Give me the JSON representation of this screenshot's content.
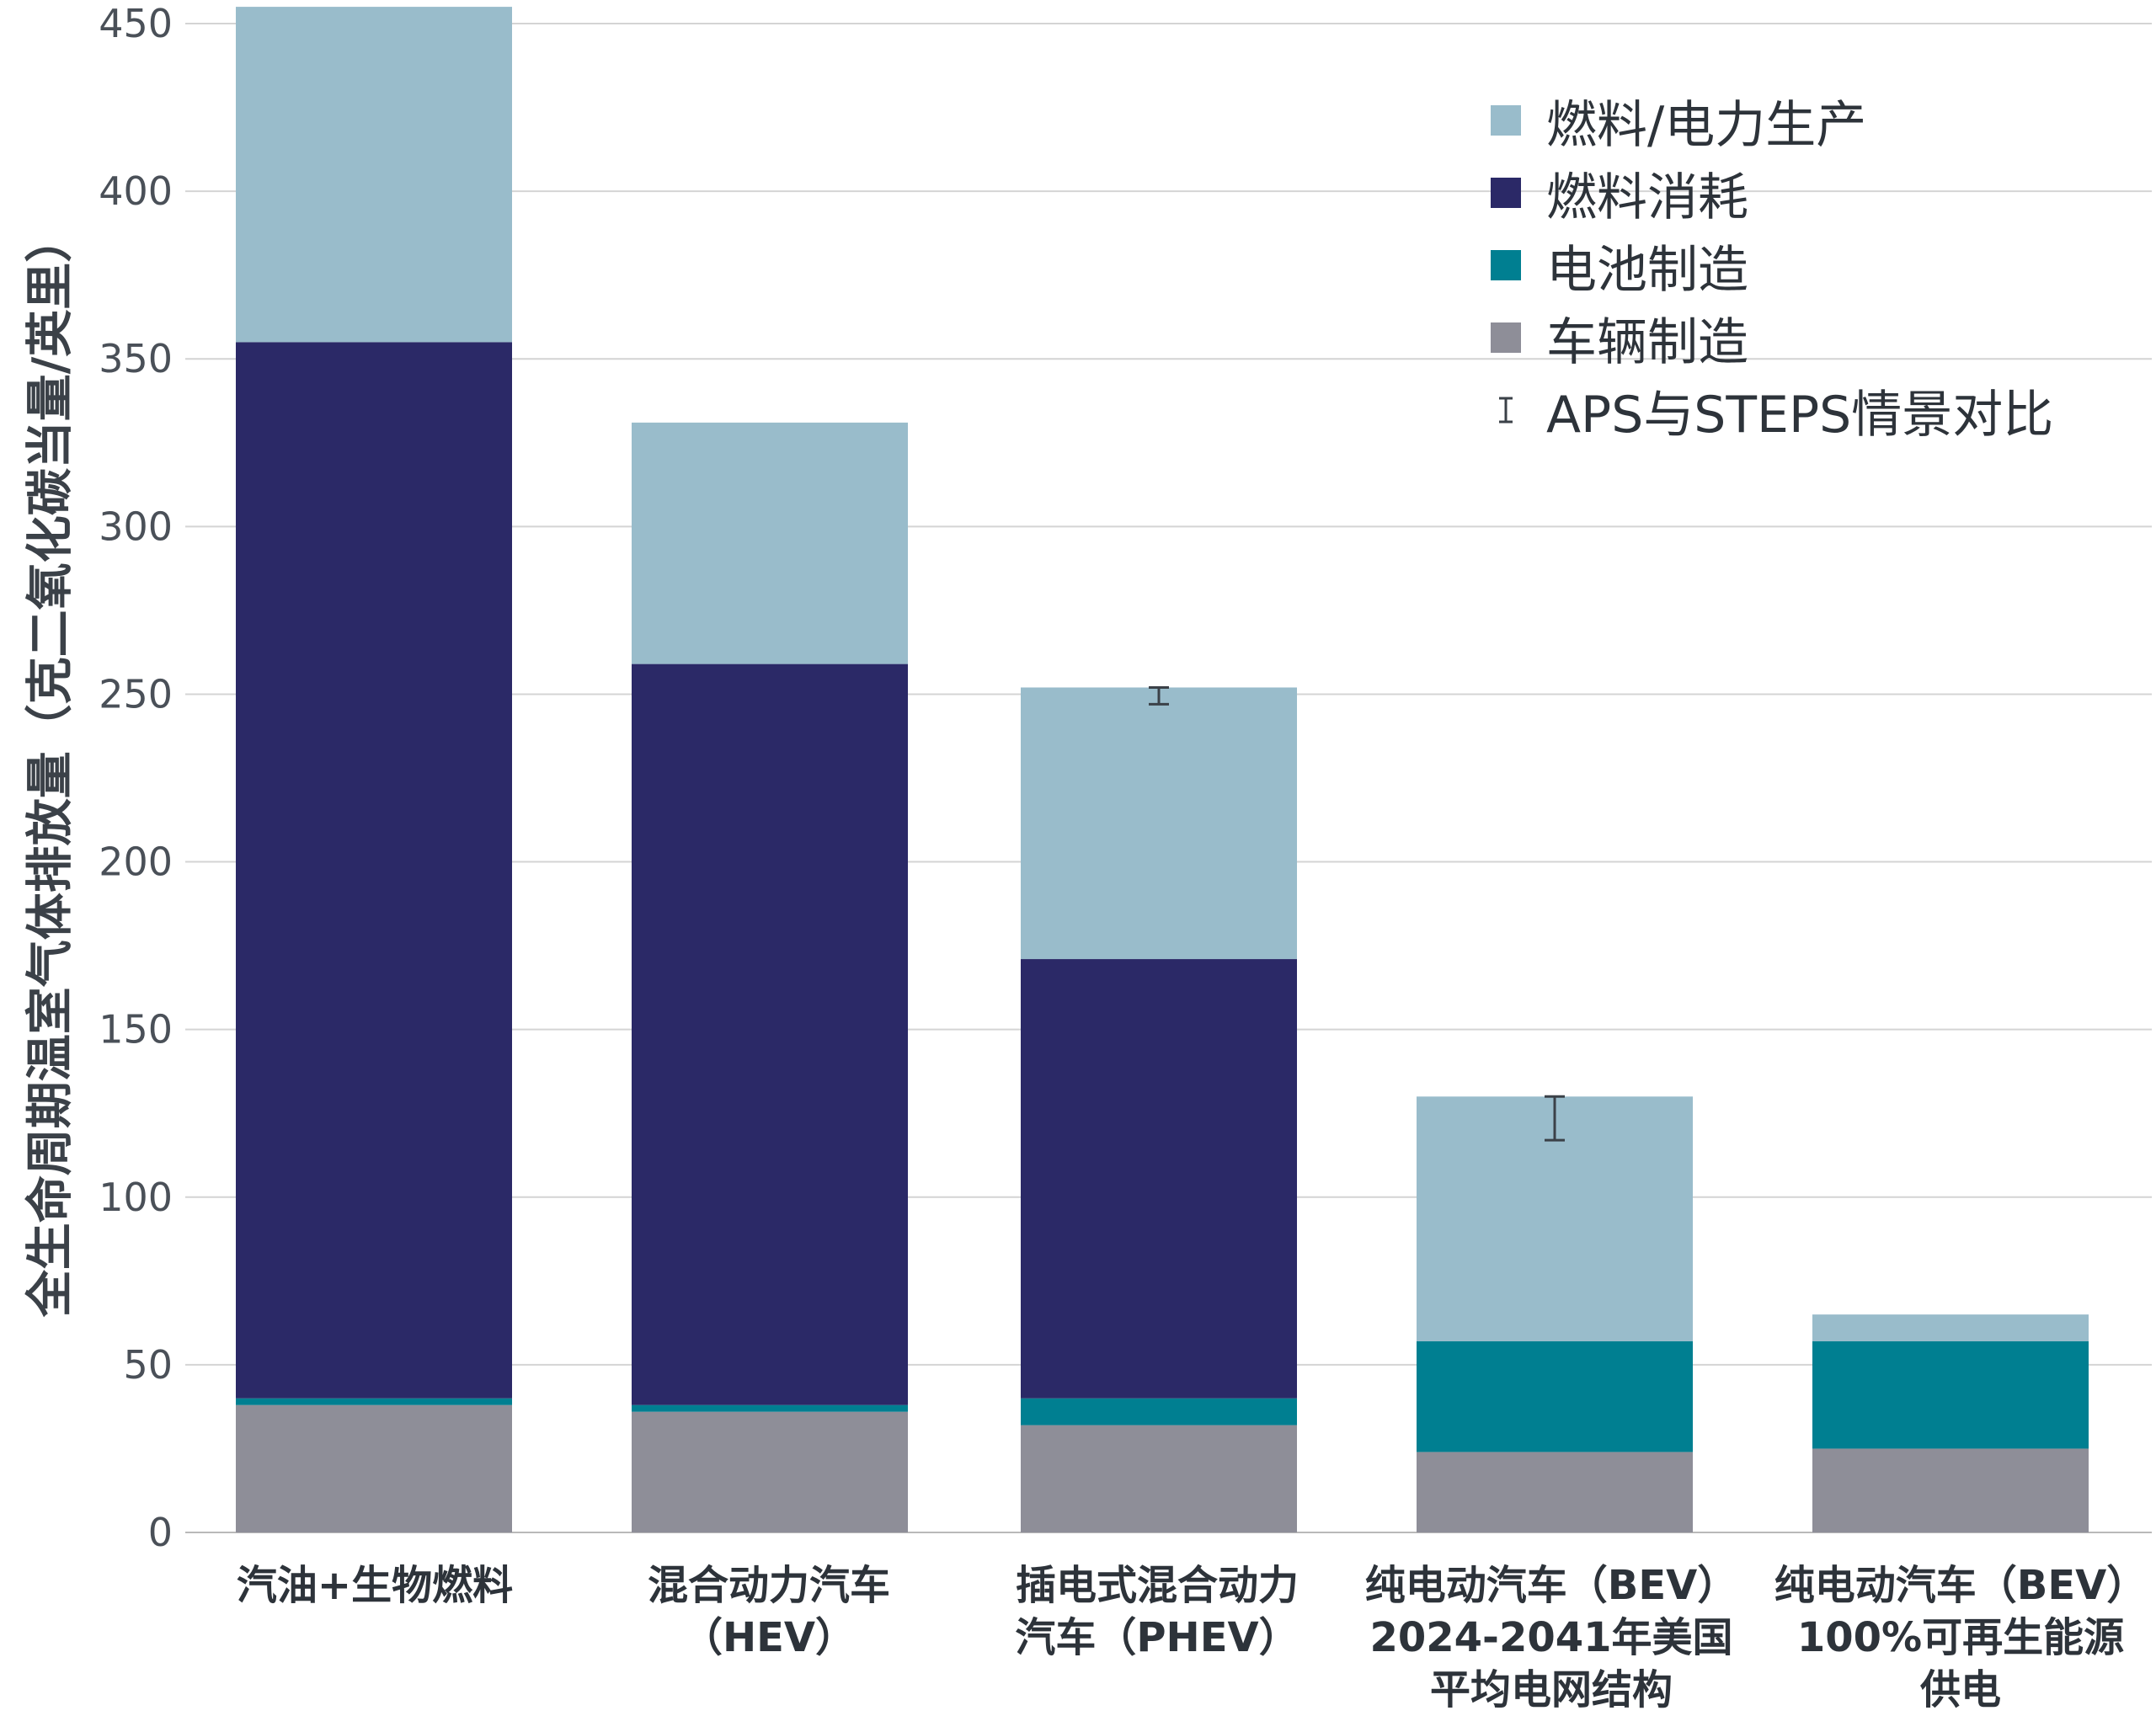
{
  "chart_data": {
    "type": "bar",
    "stacked": true,
    "ylabel": "全生命周期温室气体排放量（克二氧化碳当量/英里）",
    "ylim": [
      0,
      450
    ],
    "yticks": [
      "0",
      "50",
      "100",
      "150",
      "200",
      "250",
      "300",
      "350",
      "400",
      "450"
    ],
    "grid": true,
    "legend_position": "top-right",
    "categories": [
      "汽油+生物燃料",
      "混合动力汽车\n（HEV）",
      "插电式混合动力\n汽车（PHEV）",
      "纯电动汽车（BEV）\n2024-2041年美国\n平均电网结构",
      "纯电动汽车（BEV）\n100%可再生能源\n供电"
    ],
    "series": [
      {
        "name": "车辆制造",
        "color": "#8e8e98",
        "values": [
          38,
          36,
          32,
          24,
          25
        ]
      },
      {
        "name": "电池制造",
        "color": "#007f91",
        "values": [
          2,
          2,
          8,
          33,
          32
        ]
      },
      {
        "name": "燃料消耗",
        "color": "#2b2967",
        "values": [
          315,
          221,
          131,
          0,
          0
        ]
      },
      {
        "name": "燃料/电力生产",
        "color": "#99bccb",
        "values": [
          100,
          72,
          81,
          73,
          8
        ]
      }
    ],
    "error_bars": {
      "name": "APS与STEPS情景对比",
      "values": [
        null,
        null,
        [
          247,
          252
        ],
        [
          117,
          130
        ],
        null
      ]
    }
  },
  "legend": [
    {
      "label": "燃料/电力生产",
      "color": "#99bccb",
      "icon": "swatch"
    },
    {
      "label": "燃料消耗",
      "color": "#2b2967",
      "icon": "swatch"
    },
    {
      "label": "电池制造",
      "color": "#007f91",
      "icon": "swatch"
    },
    {
      "label": "车辆制造",
      "color": "#8e8e98",
      "icon": "swatch"
    },
    {
      "label": "APS与STEPS情景对比",
      "color": "#3b4148",
      "icon": "error-bar-icon"
    }
  ]
}
